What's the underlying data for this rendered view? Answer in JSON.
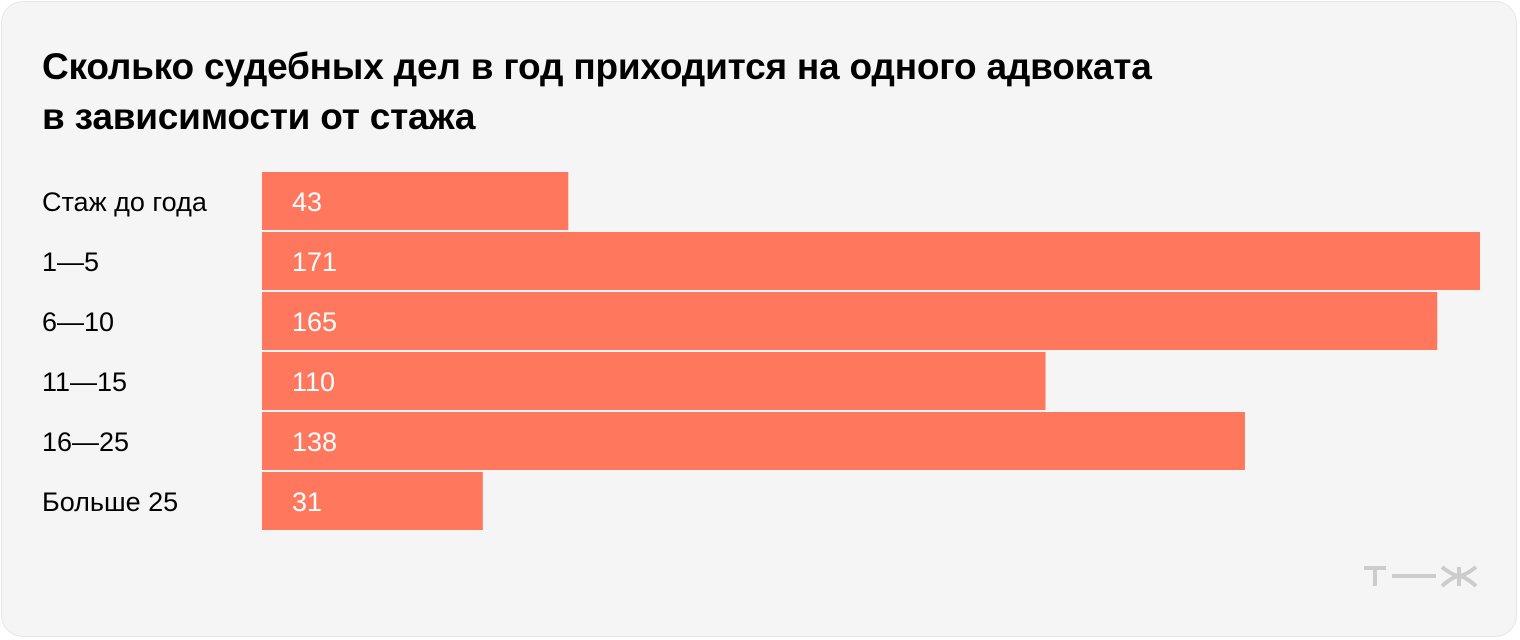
{
  "title_lines": [
    "Сколько судебных дел в год приходится на одного адвоката",
    "в зависимости от стажа"
  ],
  "logo": {
    "text": "т—ж",
    "color": "#cccccc"
  },
  "colors": {
    "bar": "#ff775c",
    "background": "#f5f5f5",
    "text": "#000000",
    "value_text": "#ffffff"
  },
  "chart_data": {
    "type": "bar",
    "orientation": "horizontal",
    "title": "Сколько судебных дел в год приходится на одного адвоката в зависимости от стажа",
    "categories": [
      "Стаж до года",
      "1—5",
      "6—10",
      "11—15",
      "16—25",
      "Больше 25"
    ],
    "values": [
      43,
      171,
      165,
      110,
      138,
      31
    ],
    "data_labels": [
      "43",
      "171",
      "165",
      "110",
      "138",
      "31"
    ],
    "xlim": [
      0,
      171
    ],
    "grid": false,
    "legend": "none"
  }
}
